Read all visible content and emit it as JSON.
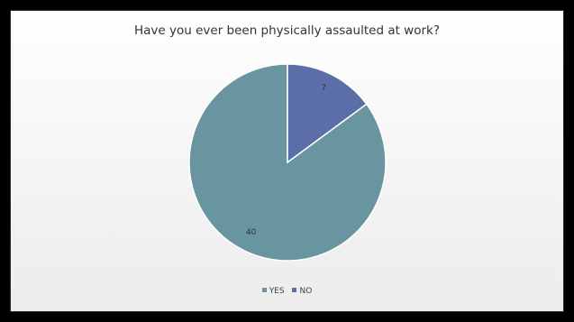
{
  "chart_data": {
    "type": "pie",
    "title": "Have you ever been physically assaulted at work?",
    "categories": [
      "YES",
      "NO"
    ],
    "values": [
      40,
      7
    ],
    "colors": [
      "#6995a0",
      "#5b6ea8"
    ],
    "legend_position": "bottom"
  }
}
